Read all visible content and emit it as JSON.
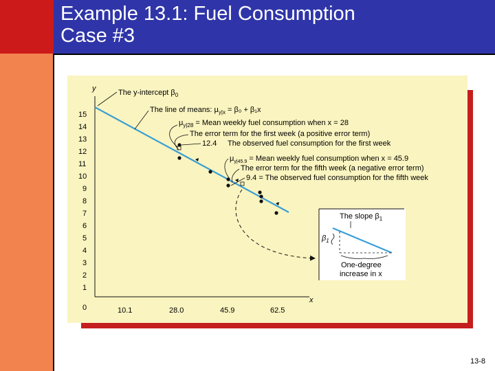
{
  "slide": {
    "title_line1": "Example 13.1: Fuel Consumption",
    "title_line2": "Case #3",
    "page_number": "13-8"
  },
  "colors": {
    "title_bar": "#2f35a8",
    "red_block": "#cc1a1a",
    "left_bar": "#f2834f",
    "figure_background": "#faf4c0",
    "figure_shadow": "#c41e1e",
    "regression_line": "#3a9fd4"
  },
  "chart_data": {
    "type": "scatter",
    "xlabel": "x",
    "ylabel": "y",
    "x_ticks": [
      "10.1",
      "28.0",
      "45.9",
      "62.5"
    ],
    "y_ticks": [
      "0",
      "1",
      "2",
      "3",
      "4",
      "5",
      "6",
      "7",
      "8",
      "9",
      "10",
      "11",
      "12",
      "13",
      "14",
      "15"
    ],
    "line_of_means": {
      "intercept_y_at_start": 15.5,
      "end_value": 7.0
    },
    "points": [
      {
        "x": 28.0,
        "y": 12.4
      },
      {
        "x": 28.0,
        "y": 11.7
      },
      {
        "x": 37.0,
        "y": 10.9
      },
      {
        "x": 45.9,
        "y": 9.4
      },
      {
        "x": 45.9,
        "y": 10.0
      },
      {
        "x": 57.0,
        "y": 8.8
      },
      {
        "x": 62.5,
        "y": 8.4
      },
      {
        "x": 62.5,
        "y": 7.8
      },
      {
        "x": 65.0,
        "y": 6.9
      }
    ],
    "annotations": {
      "intercept": "The y-intercept β",
      "intercept_sub": "0",
      "line_of_means_prefix": "The line of means: μ",
      "line_of_means_sub": "y|x",
      "line_of_means_suffix": " = β₀ + β₁x",
      "mean_28_prefix": "μ",
      "mean_28_sub": "y|28",
      "mean_28_suffix": " = Mean weekly fuel consumption when x = 28",
      "error_first": "The error term for the first week (a positive error term)",
      "obs_first_value": "12.4",
      "obs_first_text": "The observed fuel consumption for the first week",
      "mean_459_prefix": "μ",
      "mean_459_sub": "y|45.9",
      "mean_459_suffix": " = Mean weekly fuel consumption when x = 45.9",
      "error_fifth": "The error term for the fifth week (a negative error term)",
      "obs_fifth_text": "9.4 = The observed fuel consumption for the fifth week"
    },
    "inset": {
      "slope_label": "The slope β",
      "slope_sub": "1",
      "beta_label": "β",
      "beta_sub": "1",
      "increase_line1": "One-degree",
      "increase_line2": "increase in x"
    }
  }
}
